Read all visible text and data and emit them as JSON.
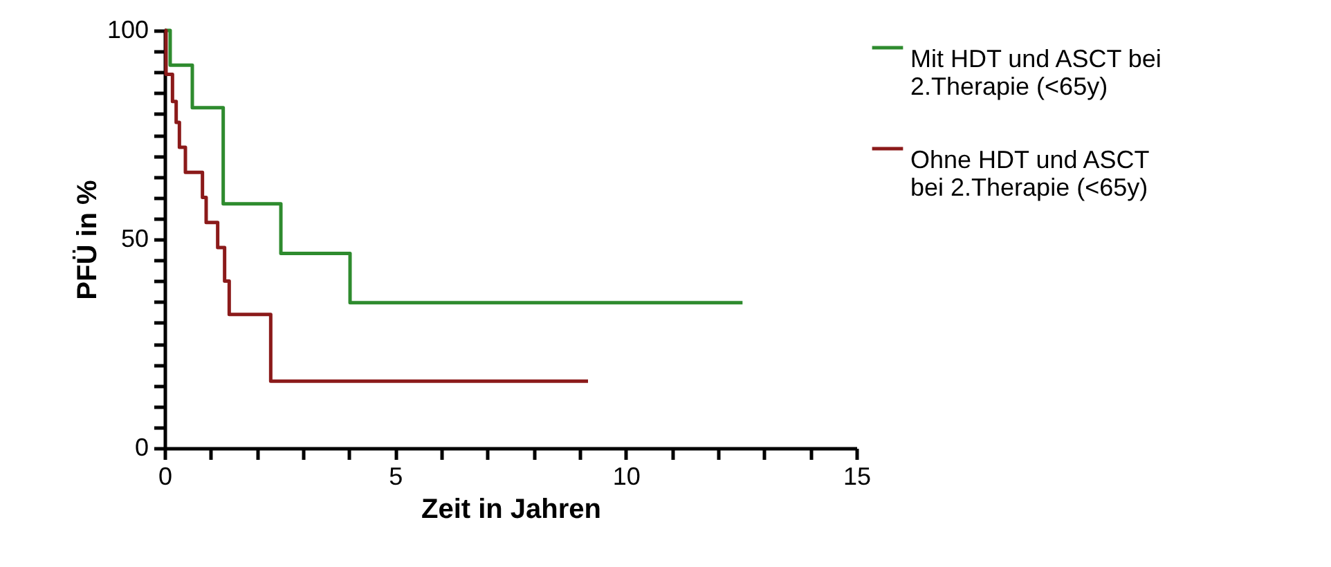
{
  "chart_data": {
    "type": "step",
    "xlabel": "Zeit in Jahren",
    "ylabel": "PFÜ in %",
    "xlim": [
      0,
      15
    ],
    "ylim": [
      0,
      100
    ],
    "xticks": [
      0,
      {
        "value": 1,
        "label": null
      },
      {
        "value": 2,
        "label": null
      },
      {
        "value": 3,
        "label": null
      },
      {
        "value": 4,
        "label": null
      },
      5,
      {
        "value": 6,
        "label": null
      },
      {
        "value": 7,
        "label": null
      },
      {
        "value": 8,
        "label": null
      },
      {
        "value": 9,
        "label": null
      },
      10,
      {
        "value": 11,
        "label": null
      },
      {
        "value": 12,
        "label": null
      },
      {
        "value": 13,
        "label": null
      },
      {
        "value": 14,
        "label": null
      },
      15
    ],
    "yticks": [
      0,
      {
        "value": 5,
        "label": null
      },
      {
        "value": 10,
        "label": null
      },
      {
        "value": 15,
        "label": null
      },
      {
        "value": 20,
        "label": null
      },
      {
        "value": 25,
        "label": null
      },
      {
        "value": 30,
        "label": null
      },
      {
        "value": 35,
        "label": null
      },
      {
        "value": 40,
        "label": null
      },
      {
        "value": 45,
        "label": null
      },
      50,
      {
        "value": 55,
        "label": null
      },
      {
        "value": 60,
        "label": null
      },
      {
        "value": 65,
        "label": null
      },
      {
        "value": 70,
        "label": null
      },
      {
        "value": 75,
        "label": null
      },
      {
        "value": 80,
        "label": null
      },
      {
        "value": 85,
        "label": null
      },
      {
        "value": 90,
        "label": null
      },
      {
        "value": 95,
        "label": null
      },
      100
    ],
    "legend": "right",
    "grid": false,
    "marker": "none",
    "line_style": "solid",
    "series": [
      {
        "name": "Mit HDT und ASCT bei 2.Therapie (<65y)",
        "color": "#2e8b2e",
        "x": [
          0,
          0.12,
          0.6,
          1.27,
          2.52,
          4.02,
          12.53
        ],
        "values": [
          100,
          91.7,
          81.5,
          58.5,
          46.6,
          34.8,
          34.8
        ]
      },
      {
        "name": "Ohne HDT und ASCT bei 2.Therapie (<65y)",
        "color": "#8b1a1a",
        "x": [
          0,
          0.03,
          0.17,
          0.25,
          0.32,
          0.45,
          0.82,
          0.9,
          1.15,
          1.3,
          1.4,
          2.3,
          9.18
        ],
        "values": [
          100,
          89.5,
          83,
          78,
          72,
          66,
          60,
          54,
          48,
          40,
          32,
          16,
          16
        ]
      }
    ]
  }
}
